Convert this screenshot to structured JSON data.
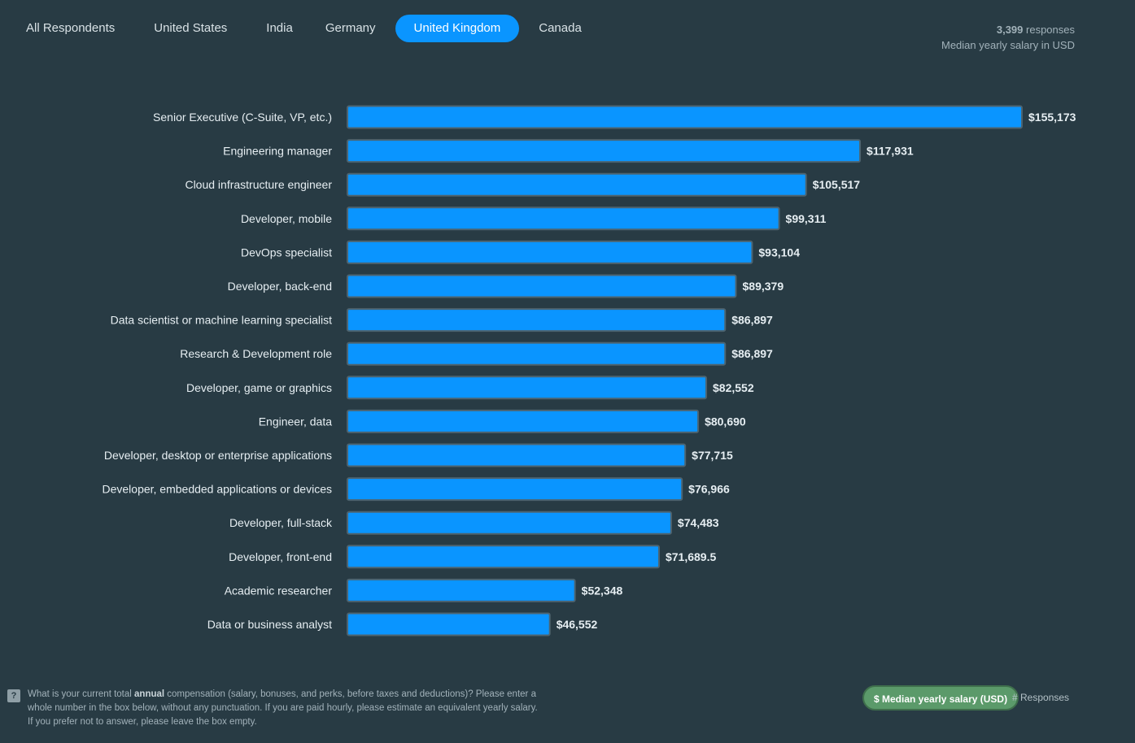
{
  "tabs": [
    {
      "label": "All Respondents"
    },
    {
      "label": "United States"
    },
    {
      "label": "India"
    },
    {
      "label": "Germany"
    },
    {
      "label": "United Kingdom",
      "active": true
    },
    {
      "label": "Canada"
    }
  ],
  "summary": {
    "count": "3,399",
    "count_suffix": " responses",
    "subtitle": "Median yearly salary in USD"
  },
  "colors": {
    "background": "#283b44",
    "bar": "#0a95ff",
    "active_tab": "#0a95ff",
    "toggle_active": "#5b9a6a"
  },
  "chart_data": {
    "type": "bar",
    "orientation": "horizontal",
    "categories": [
      "Senior Executive (C-Suite, VP, etc.)",
      "Engineering manager",
      "Cloud infrastructure engineer",
      "Developer, mobile",
      "DevOps specialist",
      "Developer, back-end",
      "Data scientist or machine learning specialist",
      "Research & Development role",
      "Developer, game or graphics",
      "Engineer, data",
      "Developer, desktop or enterprise applications",
      "Developer, embedded applications or devices",
      "Developer, full-stack",
      "Developer, front-end",
      "Academic researcher",
      "Data or business analyst"
    ],
    "values": [
      155173,
      117931,
      105517,
      99311,
      93104,
      89379,
      86897,
      86897,
      82552,
      80690,
      77715,
      76966,
      74483,
      71689.5,
      52348,
      46552
    ],
    "value_labels": [
      "$155,173",
      "$117,931",
      "$105,517",
      "$99,311",
      "$93,104",
      "$89,379",
      "$86,897",
      "$86,897",
      "$82,552",
      "$80,690",
      "$77,715",
      "$76,966",
      "$74,483",
      "$71,689.5",
      "$52,348",
      "$46,552"
    ],
    "xlim": [
      0,
      155173
    ],
    "grid": false
  },
  "footnote": {
    "pre": "What is your current total ",
    "bold": "annual",
    "post": " compensation (salary, bonuses, and perks, before taxes and deductions)? Please enter a whole number in the box below, without any punctuation. If you are paid hourly, please estimate an equivalent yearly salary. If you prefer not to answer, please leave the box empty."
  },
  "help_icon": "question-mark-icon",
  "toggle": {
    "active_label": "$ Median yearly salary (USD)",
    "inactive_label": "# Responses"
  }
}
